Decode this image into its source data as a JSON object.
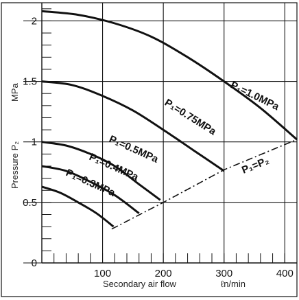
{
  "chart_data": {
    "type": "line",
    "title": "",
    "xlabel": "Secondary air flow",
    "xunit": "ℓn/min",
    "ylabel": "Pressure P₂",
    "yunit": "MPa",
    "xlim": [
      0,
      420
    ],
    "ylim": [
      0,
      2.15
    ],
    "x_ticks": [
      100,
      200,
      300,
      400
    ],
    "y_ticks": [
      0,
      0.5,
      1,
      1.5,
      2
    ],
    "x_tick_labels": [
      "100",
      "200",
      "300",
      "400"
    ],
    "y_tick_labels": [
      "0",
      "0.5",
      "1",
      "1.5",
      "2"
    ],
    "grid": true,
    "series": [
      {
        "name": "P₁=1.0MPa",
        "x": [
          0,
          60,
          120,
          180,
          240,
          300,
          360,
          420
        ],
        "y": [
          2.08,
          2.05,
          1.98,
          1.87,
          1.7,
          1.5,
          1.28,
          1.02
        ]
      },
      {
        "name": "P₁=0.75MPa",
        "x": [
          0,
          50,
          100,
          150,
          200,
          250,
          300
        ],
        "y": [
          1.5,
          1.47,
          1.38,
          1.26,
          1.1,
          0.93,
          0.76
        ]
      },
      {
        "name": "P₁=0.5MPa",
        "x": [
          0,
          40,
          80,
          120,
          160,
          195
        ],
        "y": [
          1.0,
          0.97,
          0.9,
          0.8,
          0.65,
          0.52
        ]
      },
      {
        "name": "P₁=0.4MPa",
        "x": [
          0,
          40,
          80,
          120,
          160
        ],
        "y": [
          0.8,
          0.76,
          0.67,
          0.56,
          0.41
        ]
      },
      {
        "name": "P₁=0.3MPa",
        "x": [
          0,
          30,
          60,
          90,
          118
        ],
        "y": [
          0.63,
          0.58,
          0.5,
          0.41,
          0.3
        ]
      },
      {
        "name": "P₁=P₂",
        "style": "dash-dot",
        "x": [
          115,
          200,
          300,
          420
        ],
        "y": [
          0.28,
          0.5,
          0.77,
          1.02
        ]
      }
    ]
  }
}
